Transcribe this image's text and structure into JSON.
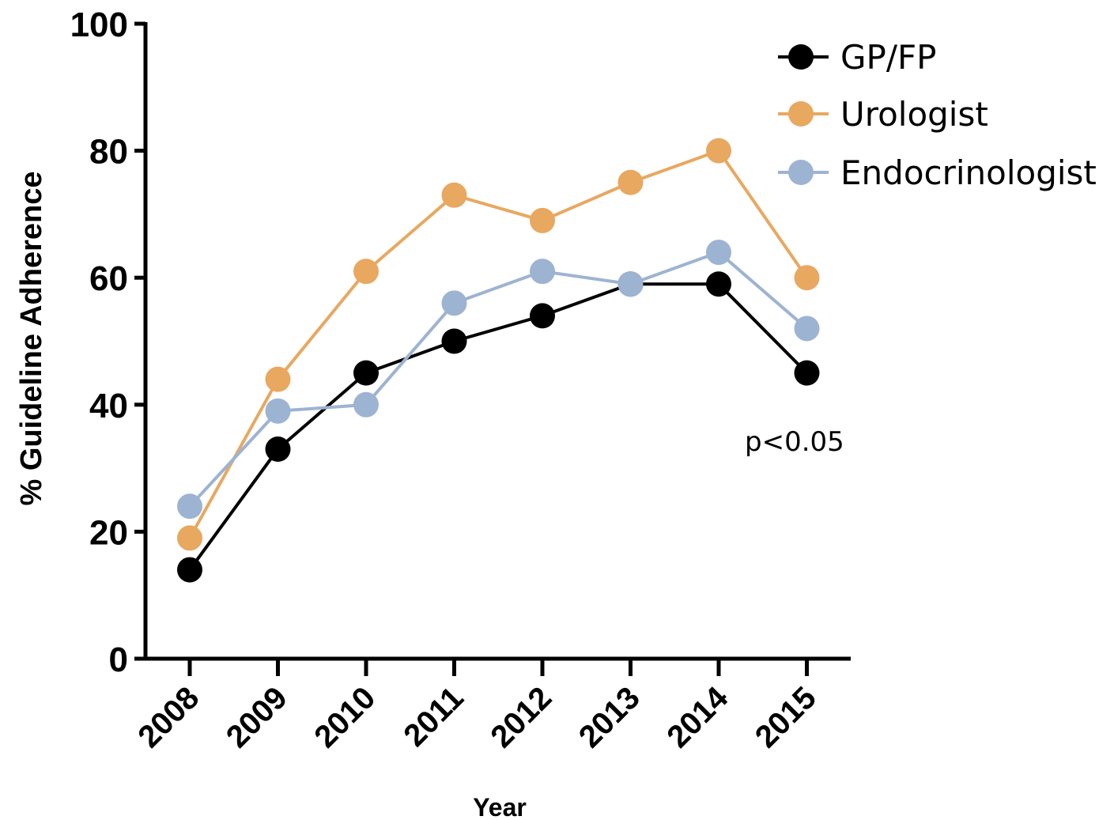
{
  "chart_data": {
    "type": "line",
    "title": "",
    "xlabel": "Year",
    "ylabel": "% Guideline Adherence",
    "categories": [
      "2008",
      "2009",
      "2010",
      "2011",
      "2012",
      "2013",
      "2014",
      "2015"
    ],
    "ylim": [
      0,
      100
    ],
    "yticks": [
      "0",
      "20",
      "40",
      "60",
      "80",
      "100"
    ],
    "grid": false,
    "legend_position": "top-right",
    "annotation": "p<0.05",
    "series": [
      {
        "name": "GP/FP",
        "color": "#000000",
        "values": [
          14,
          33,
          45,
          50,
          54,
          59,
          59,
          45
        ]
      },
      {
        "name": "Urologist",
        "color": "#E8A860",
        "values": [
          19,
          44,
          61,
          73,
          69,
          75,
          80,
          60
        ]
      },
      {
        "name": "Endocrinologist",
        "color": "#9DB3D2",
        "values": [
          24,
          39,
          40,
          56,
          61,
          59,
          64,
          52
        ]
      }
    ]
  }
}
